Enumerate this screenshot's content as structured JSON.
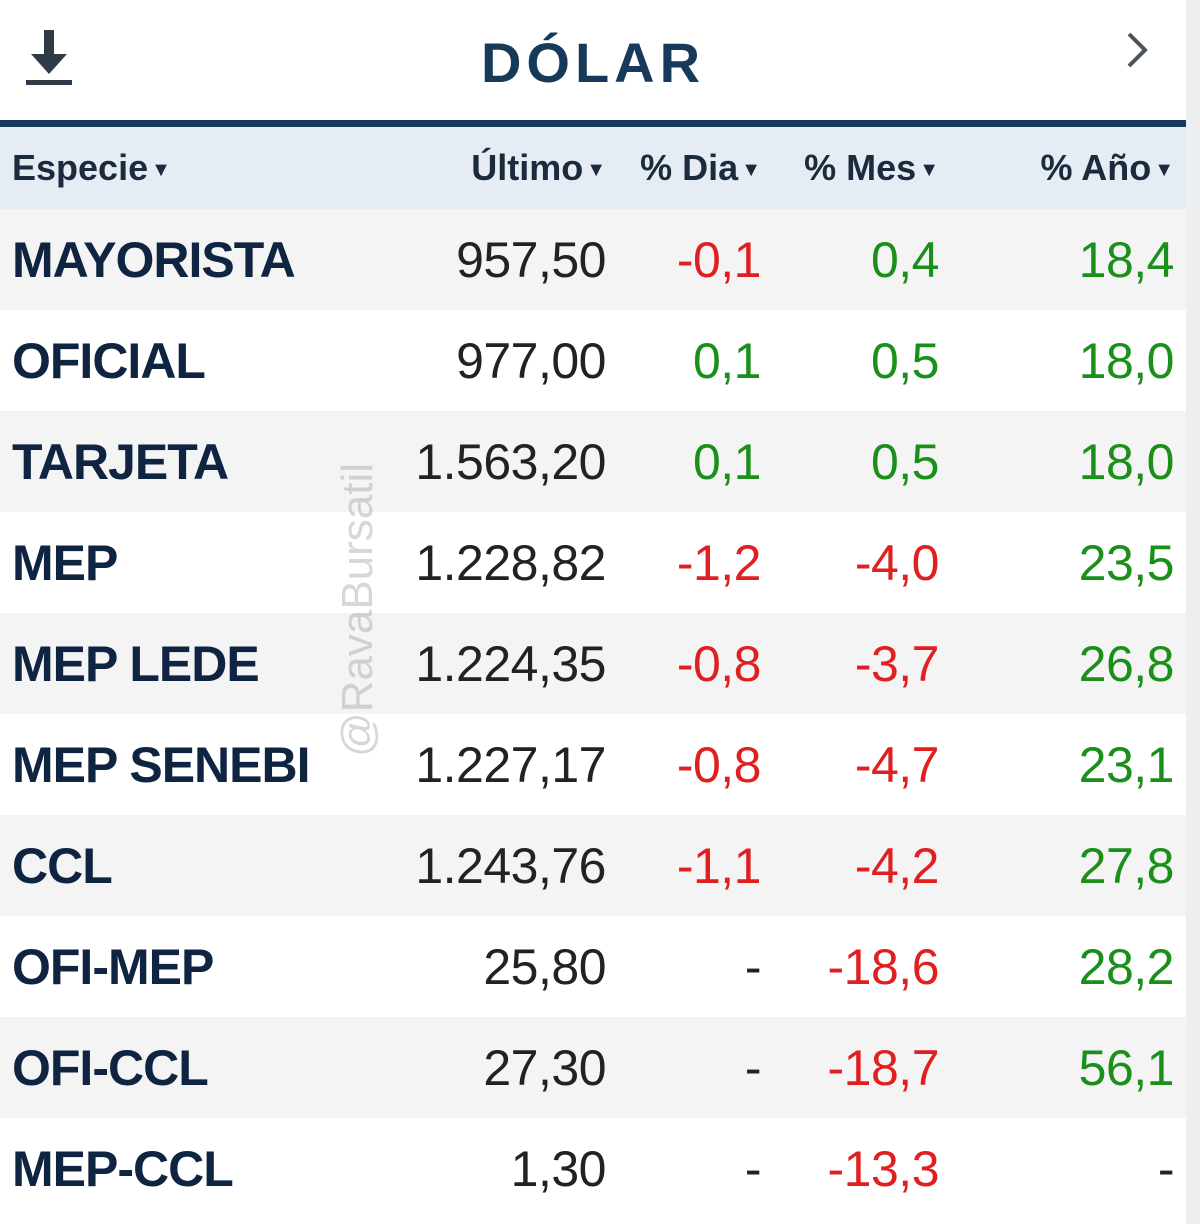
{
  "header": {
    "title": "DÓLAR",
    "download_icon": "download-icon",
    "next_icon": "chevron-right-icon"
  },
  "table": {
    "columns": [
      "Especie",
      "Último",
      "% Dia",
      "% Mes",
      "% Año"
    ],
    "rows": [
      {
        "especie": "MAYORISTA",
        "ultimo": "957,50",
        "dia": "-0,1",
        "mes": "0,4",
        "anio": "18,4"
      },
      {
        "especie": "OFICIAL",
        "ultimo": "977,00",
        "dia": "0,1",
        "mes": "0,5",
        "anio": "18,0"
      },
      {
        "especie": "TARJETA",
        "ultimo": "1.563,20",
        "dia": "0,1",
        "mes": "0,5",
        "anio": "18,0"
      },
      {
        "especie": "MEP",
        "ultimo": "1.228,82",
        "dia": "-1,2",
        "mes": "-4,0",
        "anio": "23,5"
      },
      {
        "especie": "MEP LEDE",
        "ultimo": "1.224,35",
        "dia": "-0,8",
        "mes": "-3,7",
        "anio": "26,8"
      },
      {
        "especie": "MEP SENEBI",
        "ultimo": "1.227,17",
        "dia": "-0,8",
        "mes": "-4,7",
        "anio": "23,1"
      },
      {
        "especie": "CCL",
        "ultimo": "1.243,76",
        "dia": "-1,1",
        "mes": "-4,2",
        "anio": "27,8"
      },
      {
        "especie": "OFI-MEP",
        "ultimo": "25,80",
        "dia": "-",
        "mes": "-18,6",
        "anio": "28,2"
      },
      {
        "especie": "OFI-CCL",
        "ultimo": "27,30",
        "dia": "-",
        "mes": "-18,7",
        "anio": "56,1"
      },
      {
        "especie": "MEP-CCL",
        "ultimo": "1,30",
        "dia": "-",
        "mes": "-13,3",
        "anio": "-"
      }
    ]
  },
  "watermark": "@RavaBursatil",
  "colors": {
    "title": "#173a5b",
    "negative": "#e02020",
    "positive": "#1a8f1a",
    "header_bg": "#e6ecf4"
  }
}
